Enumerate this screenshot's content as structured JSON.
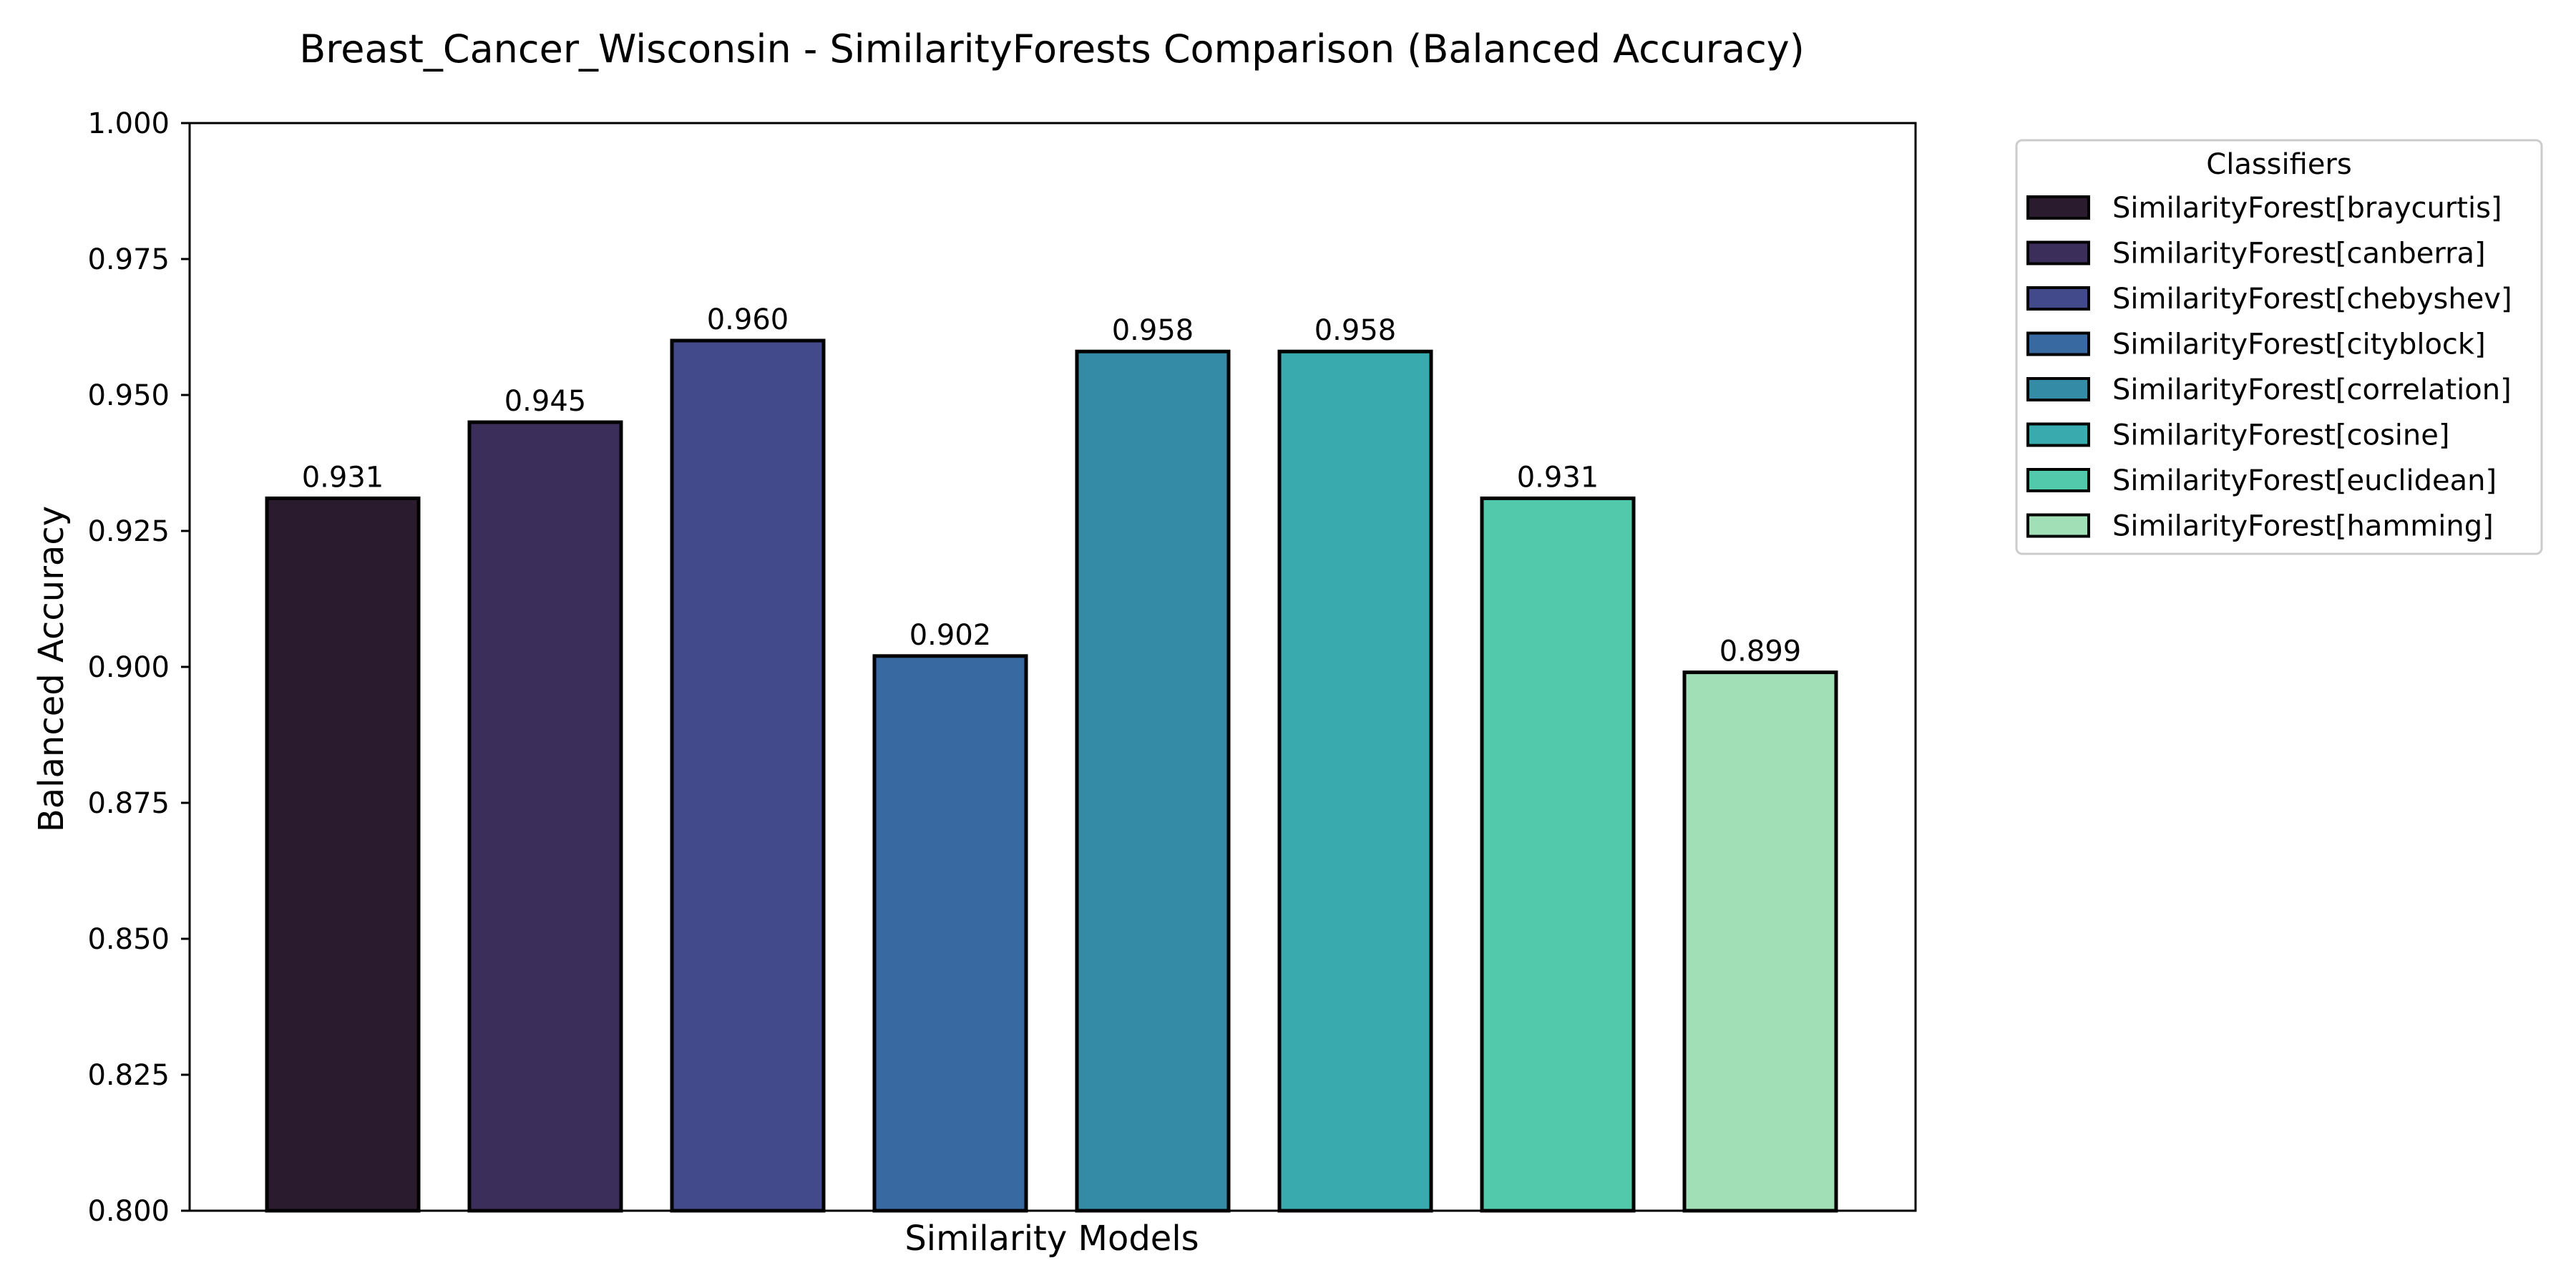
{
  "chart_data": {
    "type": "bar",
    "title": "Breast_Cancer_Wisconsin - SimilarityForests Comparison (Balanced Accuracy)",
    "xlabel": "Similarity Models",
    "ylabel": "Balanced Accuracy",
    "ylim": [
      0.8,
      1.0
    ],
    "yticks": [
      0.8,
      0.825,
      0.85,
      0.875,
      0.9,
      0.925,
      0.95,
      0.975,
      1.0
    ],
    "ytick_labels": [
      "0.800",
      "0.825",
      "0.850",
      "0.875",
      "0.900",
      "0.925",
      "0.950",
      "0.975",
      "1.000"
    ],
    "categories": [
      "SimilarityForest[braycurtis]",
      "SimilarityForest[canberra]",
      "SimilarityForest[chebyshev]",
      "SimilarityForest[cityblock]",
      "SimilarityForest[correlation]",
      "SimilarityForest[cosine]",
      "SimilarityForest[euclidean]",
      "SimilarityForest[hamming]"
    ],
    "values": [
      0.931,
      0.945,
      0.96,
      0.902,
      0.958,
      0.958,
      0.931,
      0.899
    ],
    "value_labels": [
      "0.931",
      "0.945",
      "0.960",
      "0.902",
      "0.958",
      "0.958",
      "0.931",
      "0.899"
    ],
    "colors": [
      "#2a1b2e",
      "#3c2e5a",
      "#424a8c",
      "#3869a0",
      "#348ba6",
      "#39aaae",
      "#53c9ab",
      "#a1dfb6"
    ],
    "legend": {
      "title": "Classifiers",
      "placement": "outside-top-right"
    },
    "grid": false
  }
}
